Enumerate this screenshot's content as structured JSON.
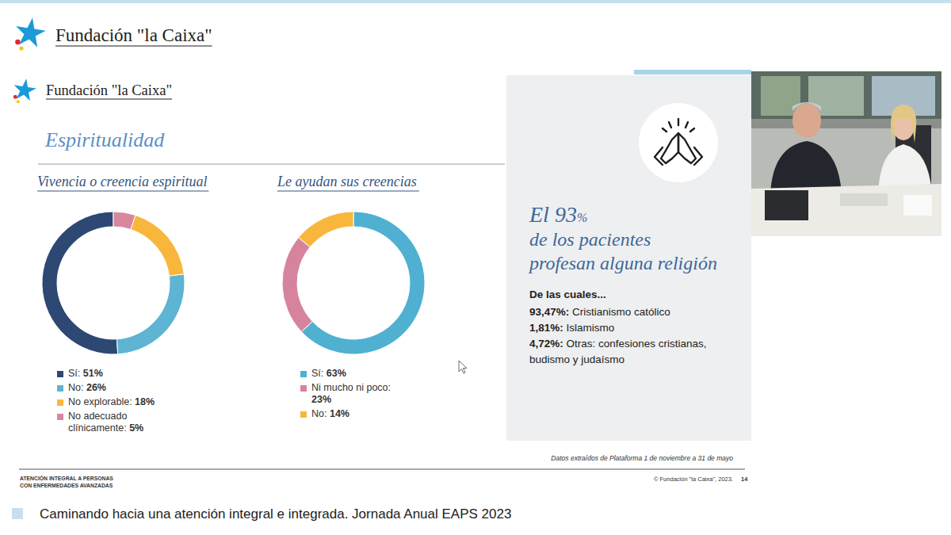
{
  "chart_data": [
    {
      "type": "donut",
      "title": "Vivencia o creencia espiritual",
      "categories": [
        "Sí:",
        "No:",
        "No explorable:",
        "No adecuado clínicamente:"
      ],
      "values": [
        51,
        26,
        18,
        5
      ],
      "value_labels": [
        "51%",
        "26%",
        "18%",
        "5%"
      ],
      "colors": [
        "#2d4873",
        "#5db4d3",
        "#f8b73c",
        "#d9869f"
      ],
      "legend": "bottom"
    },
    {
      "type": "donut",
      "title": "Le ayudan sus creencias",
      "categories": [
        "Sí:",
        "Ni mucho ni poco:",
        "No:"
      ],
      "values": [
        63,
        23,
        14
      ],
      "value_labels": [
        "63%",
        "23%",
        "14%"
      ],
      "colors": [
        "#4fb0d1",
        "#d6849e",
        "#f8b73c"
      ],
      "legend": "bottom"
    }
  ],
  "page": {
    "logo_text": "Fundación \"la Caixa\"",
    "slide_title": "Espiritualidad",
    "panel": {
      "headline_prefix": "El",
      "headline_value": "93",
      "headline_unit": "%",
      "headline_lines": [
        "de los pacientes",
        "profesan alguna religión"
      ],
      "lead": "De las cuales...",
      "items": [
        {
          "value_label": "93,47%:",
          "label": "Cristianismo católico"
        },
        {
          "value_label": "1,81%:",
          "label": "Islamismo"
        },
        {
          "value_label": "4,72%:",
          "label": "Otras: confesiones cristianas, budismo y judaísmo"
        }
      ]
    },
    "source": "Datos extraídos de Plataforma 1 de noviembre a 31 de mayo",
    "footer_left": [
      "ATENCIÓN INTEGRAL A PERSONAS",
      "CON ENFERMEDADES AVANZADAS"
    ],
    "copyright": "© Fundación \"la Caixa\", 2023.",
    "page_number": "14",
    "caption": "Caminando hacia una atención integral e integrada. Jornada Anual EAPS 2023"
  }
}
